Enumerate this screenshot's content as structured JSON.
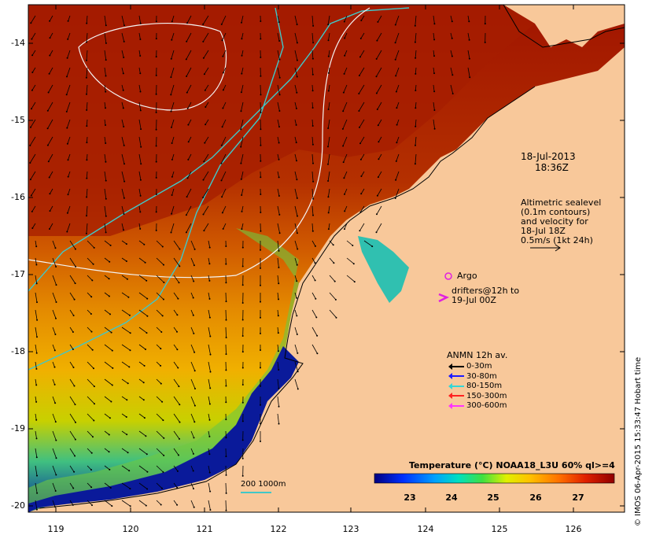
{
  "date": "18-Jul-2013",
  "time": "18:36Z",
  "altimetry_note": [
    "Altimetric sealevel",
    "(0.1m contours)",
    "and velocity for",
    "18-Jul 18Z",
    "0.5m/s (1kt 24h)"
  ],
  "argo_label": "Argo",
  "drifters_label": [
    "drifters@12h to",
    "19-Jul 00Z"
  ],
  "anmn_title": "ANMN 12h av.",
  "anmn_legend": [
    {
      "label": "0-30m",
      "color": "#000000"
    },
    {
      "label": "30-80m",
      "color": "#1a1aff"
    },
    {
      "label": "80-150m",
      "color": "#33d6d6"
    },
    {
      "label": "150-300m",
      "color": "#ff2020"
    },
    {
      "label": "300-600m",
      "color": "#ff33ff"
    }
  ],
  "colorbar_title": "Temperature (°C) NOAA18_L3U 60% ql>=4",
  "colorbar_ticks": [
    "23",
    "24",
    "25",
    "26",
    "27"
  ],
  "depth_contour_label": "200  1000m",
  "credit": "© IMOS 06-Apr-2015 15:33:47 Hobart time",
  "lat_ticks": [
    "-14",
    "-15",
    "-16",
    "-17",
    "-18",
    "-19",
    "-20"
  ],
  "lon_ticks": [
    "119",
    "120",
    "121",
    "122",
    "123",
    "124",
    "125",
    "126"
  ],
  "colors": {
    "land": "#f8c89a",
    "warm": "#a51e00",
    "mid": "#e08000",
    "cool": "#f0c000",
    "green": "#60d040",
    "cyan": "#20c0c0",
    "blue": "#001aa0",
    "contour_isobath": "#40c8c8",
    "contour_sealevel": "#f0f0f0"
  }
}
